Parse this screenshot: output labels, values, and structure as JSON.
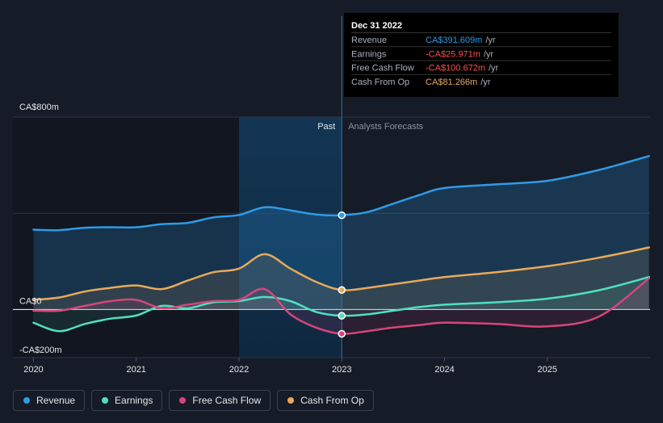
{
  "colors": {
    "revenue": "#2f9be6",
    "earnings": "#4fe0c0",
    "free_cash_flow": "#d6457b",
    "cash_from_op": "#e8a95a",
    "background": "#151b27",
    "past_highlight": "#10304c"
  },
  "chart_data": {
    "type": "line",
    "x_ticks": [
      "2020",
      "2021",
      "2022",
      "2023",
      "2024",
      "2025"
    ],
    "y_ticks": [
      {
        "value": 800,
        "label": "CA$800m"
      },
      {
        "value": 0,
        "label": "CA$0"
      },
      {
        "value": -200,
        "label": "-CA$200m"
      }
    ],
    "ylim": [
      -200,
      800
    ],
    "xlim": [
      2019.8,
      2026.0
    ],
    "divider_x": 2023.0,
    "highlight_start": 2022.0,
    "period_labels": {
      "past": "Past",
      "forecast": "Analysts Forecasts"
    },
    "series": [
      {
        "name": "Revenue",
        "key": "revenue",
        "points": [
          [
            2020.0,
            332
          ],
          [
            2020.25,
            330
          ],
          [
            2020.5,
            340
          ],
          [
            2020.75,
            342
          ],
          [
            2021.0,
            342
          ],
          [
            2021.25,
            355
          ],
          [
            2021.5,
            360
          ],
          [
            2021.75,
            383
          ],
          [
            2022.0,
            393
          ],
          [
            2022.25,
            425
          ],
          [
            2022.5,
            412
          ],
          [
            2022.75,
            395
          ],
          [
            2023.0,
            392
          ],
          [
            2023.25,
            405
          ],
          [
            2023.5,
            440
          ],
          [
            2023.75,
            475
          ],
          [
            2024.0,
            505
          ],
          [
            2024.5,
            520
          ],
          [
            2025.0,
            535
          ],
          [
            2025.5,
            580
          ],
          [
            2025.99,
            638
          ]
        ]
      },
      {
        "name": "Earnings",
        "key": "earnings",
        "points": [
          [
            2020.0,
            -55
          ],
          [
            2020.25,
            -90
          ],
          [
            2020.5,
            -60
          ],
          [
            2020.75,
            -38
          ],
          [
            2021.0,
            -25
          ],
          [
            2021.25,
            15
          ],
          [
            2021.5,
            5
          ],
          [
            2021.75,
            30
          ],
          [
            2022.0,
            35
          ],
          [
            2022.25,
            52
          ],
          [
            2022.5,
            35
          ],
          [
            2022.75,
            -10
          ],
          [
            2023.0,
            -26
          ],
          [
            2023.25,
            -20
          ],
          [
            2023.5,
            -5
          ],
          [
            2023.75,
            10
          ],
          [
            2024.0,
            20
          ],
          [
            2024.5,
            30
          ],
          [
            2025.0,
            45
          ],
          [
            2025.5,
            80
          ],
          [
            2025.99,
            135
          ]
        ]
      },
      {
        "name": "Free Cash Flow",
        "key": "free_cash_flow",
        "points": [
          [
            2020.0,
            -5
          ],
          [
            2020.25,
            -5
          ],
          [
            2020.5,
            15
          ],
          [
            2020.75,
            35
          ],
          [
            2021.0,
            40
          ],
          [
            2021.25,
            5
          ],
          [
            2021.5,
            20
          ],
          [
            2021.75,
            35
          ],
          [
            2022.0,
            40
          ],
          [
            2022.25,
            85
          ],
          [
            2022.5,
            -20
          ],
          [
            2022.75,
            -75
          ],
          [
            2023.0,
            -101
          ],
          [
            2023.25,
            -90
          ],
          [
            2023.5,
            -75
          ],
          [
            2023.75,
            -65
          ],
          [
            2024.0,
            -55
          ],
          [
            2024.5,
            -60
          ],
          [
            2025.0,
            -70
          ],
          [
            2025.5,
            -30
          ],
          [
            2025.99,
            130
          ]
        ]
      },
      {
        "name": "Cash From Op",
        "key": "cash_from_op",
        "points": [
          [
            2020.0,
            40
          ],
          [
            2020.25,
            50
          ],
          [
            2020.5,
            75
          ],
          [
            2020.75,
            90
          ],
          [
            2021.0,
            100
          ],
          [
            2021.25,
            85
          ],
          [
            2021.5,
            120
          ],
          [
            2021.75,
            155
          ],
          [
            2022.0,
            170
          ],
          [
            2022.25,
            230
          ],
          [
            2022.5,
            170
          ],
          [
            2022.75,
            115
          ],
          [
            2023.0,
            81
          ],
          [
            2023.25,
            90
          ],
          [
            2023.5,
            105
          ],
          [
            2023.75,
            120
          ],
          [
            2024.0,
            135
          ],
          [
            2024.5,
            155
          ],
          [
            2025.0,
            180
          ],
          [
            2025.5,
            215
          ],
          [
            2025.99,
            258
          ]
        ]
      }
    ],
    "markers": [
      {
        "series": "revenue",
        "x": 2023.0,
        "y": 392
      },
      {
        "series": "cash_from_op",
        "x": 2023.0,
        "y": 81
      },
      {
        "series": "earnings",
        "x": 2023.0,
        "y": -26
      },
      {
        "series": "free_cash_flow",
        "x": 2023.0,
        "y": -101
      }
    ]
  },
  "tooltip": {
    "date": "Dec 31 2022",
    "rows": [
      {
        "label": "Revenue",
        "value": "CA$391.609m",
        "unit": "/yr",
        "key": "revenue"
      },
      {
        "label": "Earnings",
        "value": "-CA$25.971m",
        "unit": "/yr",
        "key": "earnings_neg"
      },
      {
        "label": "Free Cash Flow",
        "value": "-CA$100.672m",
        "unit": "/yr",
        "key": "free_cash_flow_neg"
      },
      {
        "label": "Cash From Op",
        "value": "CA$81.266m",
        "unit": "/yr",
        "key": "cash_from_op"
      }
    ],
    "value_colors": {
      "revenue": "#2f9be6",
      "earnings_neg": "#ff4d4d",
      "free_cash_flow_neg": "#ff4d4d",
      "cash_from_op": "#e8a95a"
    }
  },
  "legend": [
    {
      "label": "Revenue",
      "key": "revenue"
    },
    {
      "label": "Earnings",
      "key": "earnings"
    },
    {
      "label": "Free Cash Flow",
      "key": "free_cash_flow"
    },
    {
      "label": "Cash From Op",
      "key": "cash_from_op"
    }
  ]
}
